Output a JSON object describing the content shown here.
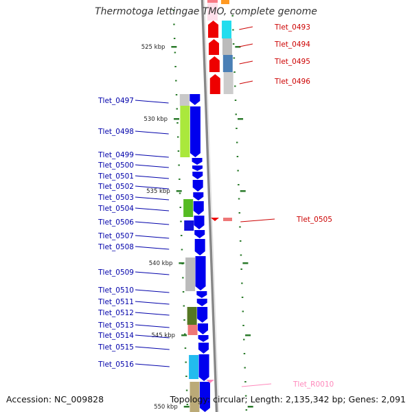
{
  "title": "Thermotoga lettingae TMO, complete genome",
  "accession": "Accession: NC_009828",
  "topology": "Topology: circular; Length: 2,135,342 bp; Genes: 2,091",
  "colors": {
    "forward": "#0000ee",
    "reverse": "#ee0000",
    "forward_label": "#0000aa",
    "reverse_label": "#cc0000",
    "rna_label": "#ff88bb",
    "backbone": "#999999",
    "tick": "#2a7a2a"
  },
  "ticks": [
    "525 kbp",
    "530 kbp",
    "535 kbp",
    "540 kbp",
    "545 kbp",
    "550 kbp"
  ],
  "reverse_genes": [
    "Tlet_0493",
    "Tlet_0494",
    "Tlet_0495",
    "Tlet_0496",
    "Tlet_0505",
    "Tlet_R0010"
  ],
  "forward_genes": [
    "Tlet_0497",
    "Tlet_0498",
    "Tlet_0499",
    "Tlet_0500",
    "Tlet_0501",
    "Tlet_0502",
    "Tlet_0503",
    "Tlet_0504",
    "Tlet_0506",
    "Tlet_0507",
    "Tlet_0508",
    "Tlet_0509",
    "Tlet_0510",
    "Tlet_0511",
    "Tlet_0512",
    "Tlet_0513",
    "Tlet_0514",
    "Tlet_0515",
    "Tlet_0516"
  ]
}
